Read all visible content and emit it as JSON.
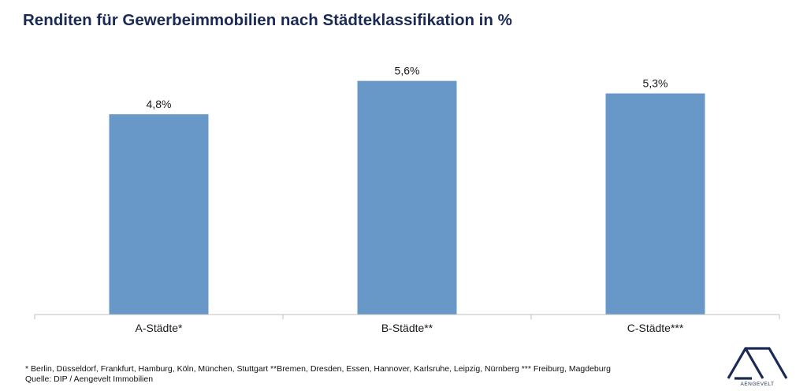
{
  "title": "Renditen für Gewerbeimmobilien nach Städteklassifikation in %",
  "chart_data": {
    "type": "bar",
    "categories": [
      "A-Städte*",
      "B-Städte**",
      "C-Städte***"
    ],
    "values": [
      4.8,
      5.6,
      5.3
    ],
    "value_labels": [
      "4,8%",
      "5,6%",
      "5,3%"
    ],
    "title": "Renditen für Gewerbeimmobilien nach Städteklassifikation in %",
    "xlabel": "",
    "ylabel": "",
    "ylim": [
      0,
      6.5
    ],
    "grid": false,
    "legend": "none",
    "bar_color": "#6898c8",
    "axis_color": "#bfbfbf"
  },
  "footnotes": {
    "cities": "* Berlin, Düsseldorf, Frankfurt, Hamburg, Köln, München, Stuttgart  **Bremen, Dresden, Essen, Hannover, Karlsruhe, Leipzig, Nürnberg *** Freiburg, Magdeburg",
    "source": "Quelle: DIP / Aengevelt Immobilien"
  },
  "logo": {
    "text": "AENGEVELT",
    "color": "#1b2a55"
  }
}
